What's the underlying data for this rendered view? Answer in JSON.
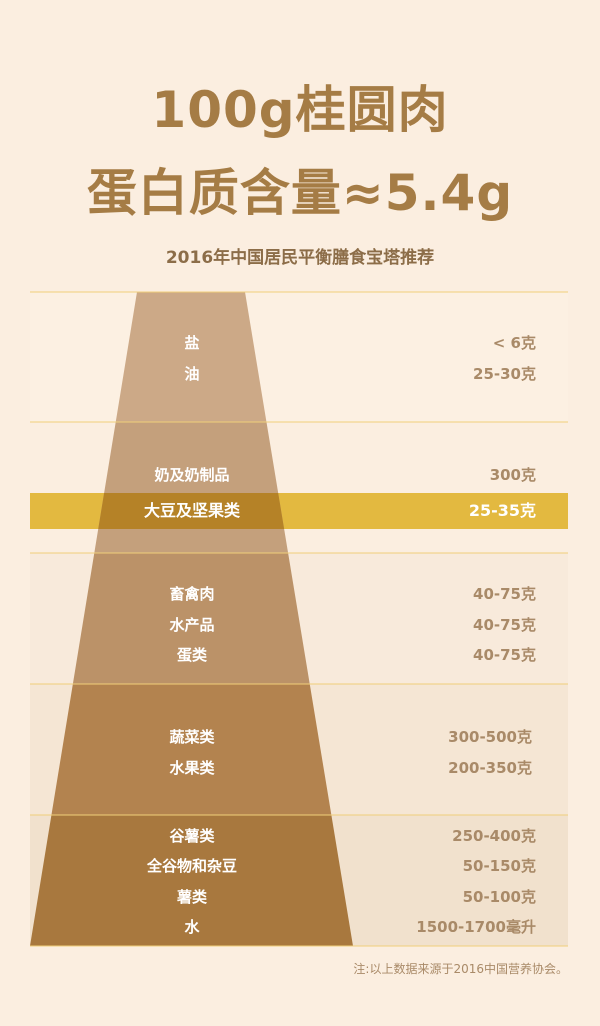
{
  "title_line1": "100g桂圆肉",
  "title_line2": "蛋白质含量≈5.4g",
  "subtitle": "2016年中国居民平衡膳食宝塔推荐",
  "colors": {
    "title": "#a57c45",
    "highlight": "#e3b940",
    "line": "#f0cf7a"
  },
  "tiers": [
    {
      "items": [
        {
          "name": "盐",
          "amount": "< 6克"
        },
        {
          "name": "油",
          "amount": "25-30克"
        }
      ]
    },
    {
      "items": [
        {
          "name": "奶及奶制品",
          "amount": "300克"
        },
        {
          "name": "大豆及坚果类",
          "amount": "25-35克",
          "highlighted": true
        }
      ]
    },
    {
      "items": [
        {
          "name": "畜禽肉",
          "amount": "40-75克"
        },
        {
          "name": "水产品",
          "amount": "40-75克"
        },
        {
          "name": "蛋类",
          "amount": "40-75克"
        }
      ]
    },
    {
      "items": [
        {
          "name": "蔬菜类",
          "amount": "300-500克"
        },
        {
          "name": "水果类",
          "amount": "200-350克"
        }
      ]
    },
    {
      "items": [
        {
          "name": "谷薯类",
          "amount": "250-400克"
        },
        {
          "name": "全谷物和杂豆",
          "amount": "50-150克"
        },
        {
          "name": "薯类",
          "amount": "50-100克"
        },
        {
          "name": "水",
          "amount": "1500-1700毫升"
        }
      ]
    }
  ],
  "note": "注:以上数据来源于2016中国营养协会。"
}
